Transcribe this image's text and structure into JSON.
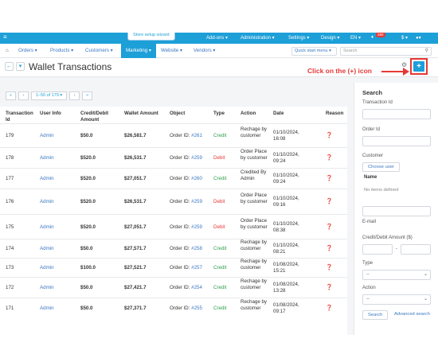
{
  "topbar": {
    "menu_icon": "hamburger-icon",
    "wizard_label": "Store setup wizard",
    "addons": "Add-ons ▾",
    "administration": "Administration ▾",
    "settings": "Settings ▾",
    "design": "Design ▾",
    "language": "EN ▾",
    "notification_count": "280",
    "currency": "$ ▾",
    "account": "▾"
  },
  "nav": {
    "home_icon": "home-icon",
    "items": [
      "Orders ▾",
      "Products ▾",
      "Customers ▾",
      "Marketing ▾",
      "Website ▾",
      "Vendors ▾"
    ],
    "quick_start": "Quick start menu ▾",
    "search_placeholder": "Search"
  },
  "title_bar": {
    "back_label": "←",
    "dropdown_label": "▾",
    "page_title": "Wallet Transactions",
    "annotation": "Click on the (+) icon",
    "add_label": "+"
  },
  "pager": {
    "first": "«",
    "prev": "‹",
    "range": "1–50 of 179 ▾",
    "next": "›",
    "last": "»"
  },
  "table": {
    "headers": [
      "Transaction Id",
      "User Info",
      "Credit/Debit Amount",
      "Wallet Amount",
      "Object",
      "Type",
      "Action",
      "Date",
      "Reason"
    ],
    "rows": [
      {
        "id": "179",
        "user": "Admin",
        "amount": "$50.0",
        "wallet": "$26,581.7",
        "object": "Order ID: ",
        "order": "#261",
        "type": "Credit",
        "action": "Rechage by customer",
        "date": "01/10/2024, 16:08"
      },
      {
        "id": "178",
        "user": "Admin",
        "amount": "$520.0",
        "wallet": "$26,531.7",
        "object": "Order ID: ",
        "order": "#259",
        "type": "Debit",
        "action": "Order Place by customer",
        "date": "01/10/2024, 09:24"
      },
      {
        "id": "177",
        "user": "Admin",
        "amount": "$520.0",
        "wallet": "$27,051.7",
        "object": "Order ID: ",
        "order": "#260",
        "type": "Credit",
        "action": "Credited By Admin",
        "date": "01/10/2024, 09:24"
      },
      {
        "id": "176",
        "user": "Admin",
        "amount": "$520.0",
        "wallet": "$26,531.7",
        "object": "Order ID: ",
        "order": "#259",
        "type": "Debit",
        "action": "Order Place by customer",
        "date": "01/10/2024, 09:16"
      },
      {
        "id": "175",
        "user": "Admin",
        "amount": "$520.0",
        "wallet": "$27,051.7",
        "object": "Order ID: ",
        "order": "#259",
        "type": "Debit",
        "action": "Order Place by customer",
        "date": "01/10/2024, 08:38"
      },
      {
        "id": "174",
        "user": "Admin",
        "amount": "$50.0",
        "wallet": "$27,571.7",
        "object": "Order ID: ",
        "order": "#258",
        "type": "Credit",
        "action": "Rechage by customer",
        "date": "01/10/2024, 08:21"
      },
      {
        "id": "173",
        "user": "Admin",
        "amount": "$100.0",
        "wallet": "$27,521.7",
        "object": "Order ID: ",
        "order": "#257",
        "type": "Credit",
        "action": "Rechage by customer",
        "date": "01/08/2024, 15:21"
      },
      {
        "id": "172",
        "user": "Admin",
        "amount": "$50.0",
        "wallet": "$27,421.7",
        "object": "Order ID: ",
        "order": "#254",
        "type": "Credit",
        "action": "Rechage by customer",
        "date": "01/08/2024, 13:28"
      },
      {
        "id": "171",
        "user": "Admin",
        "amount": "$50.0",
        "wallet": "$27,371.7",
        "object": "Order ID: ",
        "order": "#255",
        "type": "Credit",
        "action": "Rechage by customer",
        "date": "01/08/2024, 09:17"
      }
    ]
  },
  "search_panel": {
    "title": "Search",
    "transaction_id_label": "Transaction Id",
    "order_id_label": "Order Id",
    "customer_label": "Customer",
    "choose_user": "Choose user",
    "name_label": "Name",
    "no_items": "No items defined",
    "email_label": "E-mail",
    "amount_label": "Credit/Debit Amount ($)",
    "range_dash": "-",
    "type_label": "Type",
    "type_value": "--",
    "action_label": "Action",
    "action_value": "--",
    "search_button": "Search",
    "advanced_search": "Advanced search"
  },
  "colors": {
    "brand_blue": "#1d9fd8",
    "credit_green": "#2e9e4b",
    "debit_red": "#e53935"
  }
}
